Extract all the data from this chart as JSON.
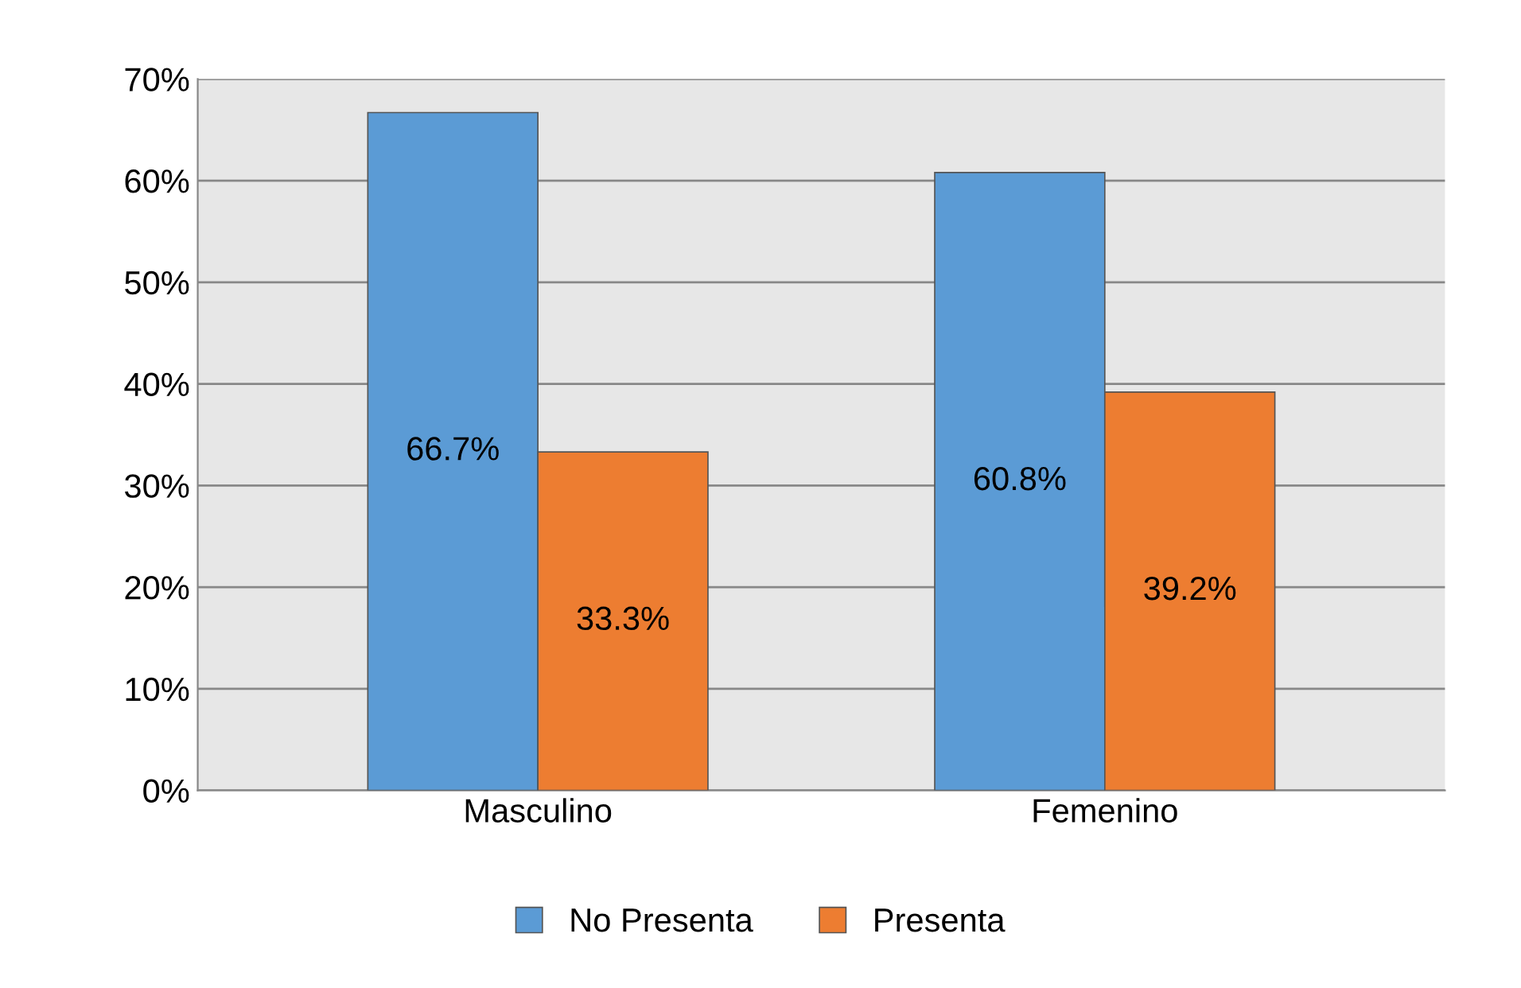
{
  "chart_data": {
    "type": "bar",
    "categories": [
      "Masculino",
      "Femenino"
    ],
    "series": [
      {
        "name": "No Presenta",
        "color": "#5b9bd5",
        "values": [
          66.7,
          60.8
        ],
        "value_labels": [
          "66.7%",
          "60.8%"
        ]
      },
      {
        "name": "Presenta",
        "color": "#ed7d31",
        "values": [
          33.3,
          39.2
        ],
        "value_labels": [
          "33.3%",
          "39.2%"
        ]
      }
    ],
    "ylim": [
      0,
      70
    ],
    "yticks": [
      {
        "value": 0,
        "label": "0%"
      },
      {
        "value": 10,
        "label": "10%"
      },
      {
        "value": 20,
        "label": "20%"
      },
      {
        "value": 30,
        "label": "30%"
      },
      {
        "value": 40,
        "label": "40%"
      },
      {
        "value": 50,
        "label": "50%"
      },
      {
        "value": 60,
        "label": "60%"
      },
      {
        "value": 70,
        "label": "70%"
      }
    ],
    "grid": "y",
    "legend": "bottom"
  }
}
